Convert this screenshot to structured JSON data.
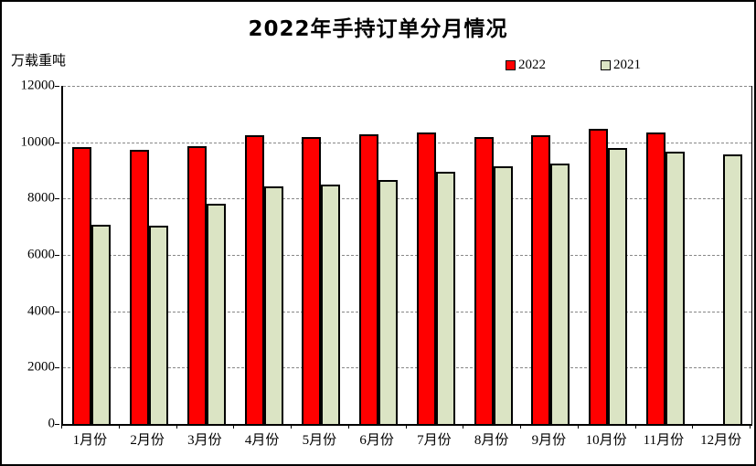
{
  "window": {
    "title": "2022年手持订单分月情况"
  },
  "chart": {
    "title": "2022年手持订单分月情况",
    "unit_label": "万载重吨",
    "legend": [
      {
        "label": "2022",
        "color": "#FF0000"
      },
      {
        "label": "2021",
        "color": "#DBE4C4"
      }
    ]
  },
  "chart_data": {
    "type": "bar",
    "title": "2022年手持订单分月情况",
    "xlabel": "",
    "ylabel": "万载重吨",
    "categories": [
      "1月份",
      "2月份",
      "3月份",
      "4月份",
      "5月份",
      "6月份",
      "7月份",
      "8月份",
      "9月份",
      "10月份",
      "11月份",
      "12月份"
    ],
    "series": [
      {
        "name": "2022",
        "color": "#FF0000",
        "values": [
          9830,
          9730,
          9870,
          10250,
          10180,
          10280,
          10350,
          10180,
          10260,
          10470,
          10350,
          null
        ]
      },
      {
        "name": "2021",
        "color": "#DBE4C4",
        "values": [
          7070,
          7040,
          7820,
          8430,
          8500,
          8660,
          8950,
          9150,
          9240,
          9800,
          9650,
          9580
        ]
      }
    ],
    "ylim": [
      0,
      12000
    ],
    "yticks": [
      0,
      2000,
      4000,
      6000,
      8000,
      10000,
      12000
    ],
    "grid": "horizontal-dashed",
    "legend_position": "top-right",
    "bar_border_color": "#000000",
    "gridline_color": "#888888"
  }
}
